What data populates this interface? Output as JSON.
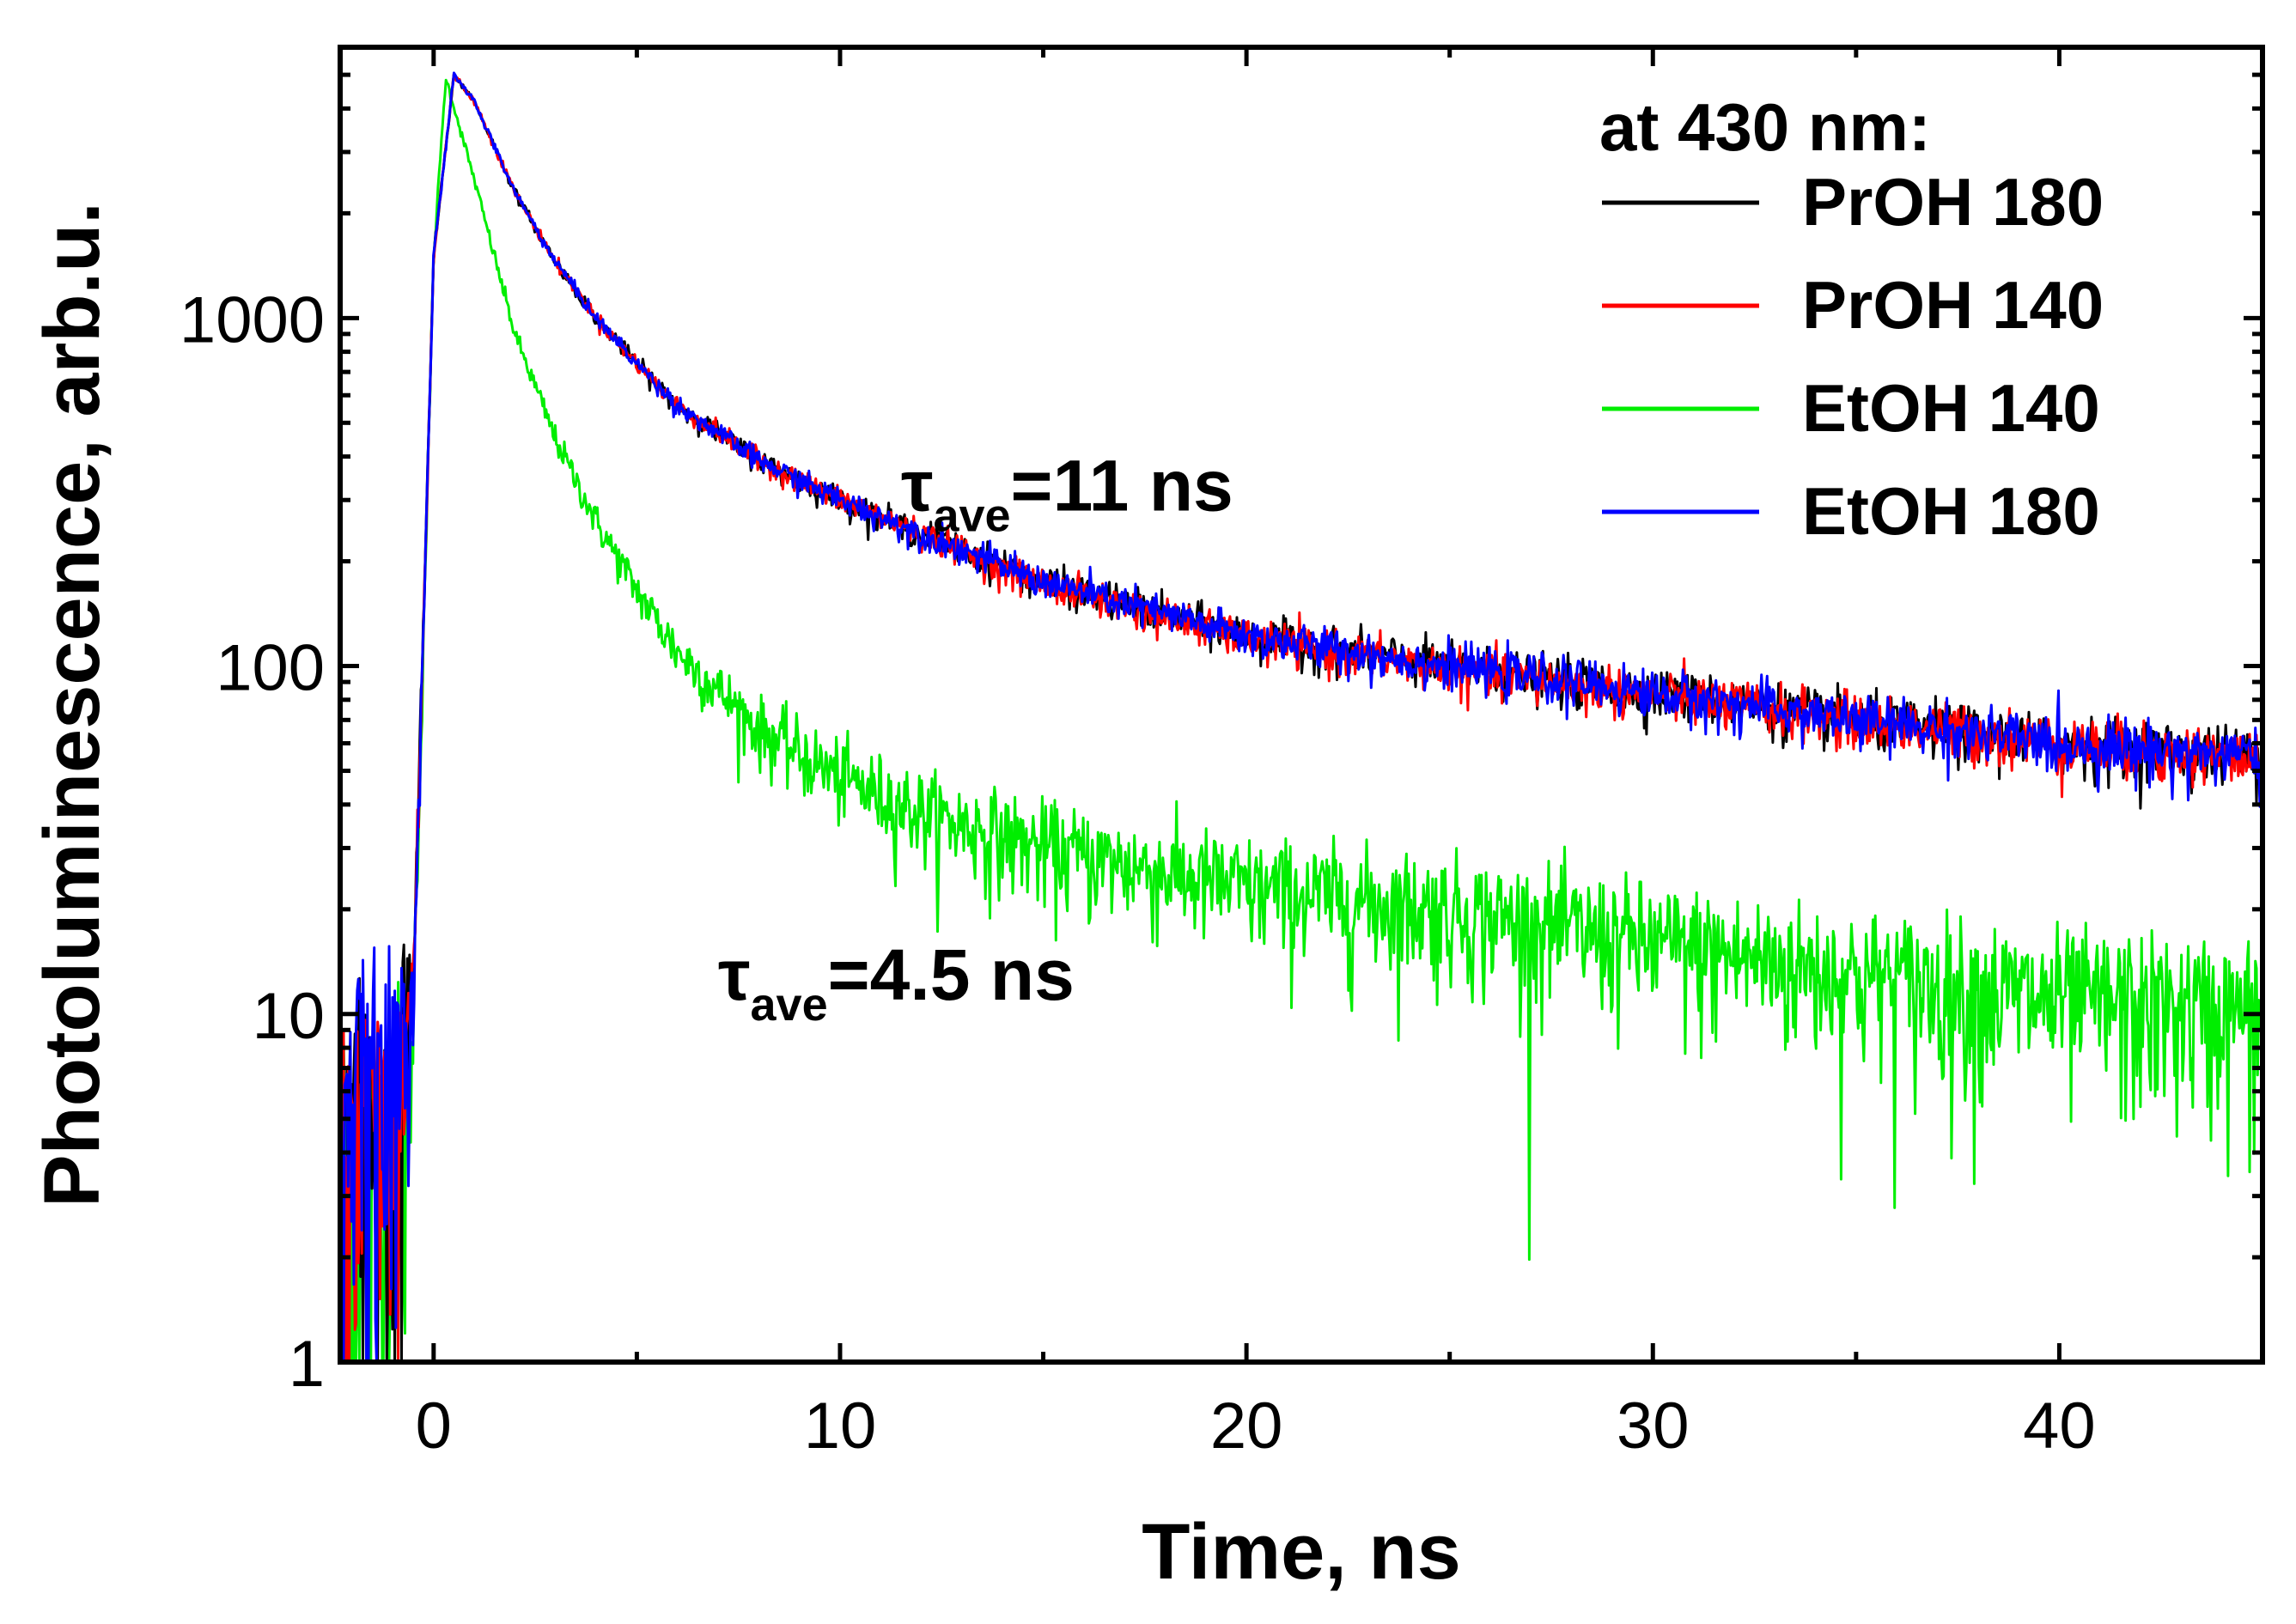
{
  "chart_data": {
    "type": "line",
    "title": "",
    "xlabel": "Time, ns",
    "ylabel": "Photoluminescence, arb.u.",
    "xlim": [
      -2.3,
      45
    ],
    "ylim": [
      1,
      6000
    ],
    "yscale": "log",
    "grid": false,
    "x_ticks": [
      0,
      10,
      20,
      30,
      40
    ],
    "x_tick_labels": [
      "0",
      "10",
      "20",
      "30",
      "40"
    ],
    "y_ticks": [
      1,
      10,
      100,
      1000
    ],
    "y_tick_labels": [
      "1",
      "10",
      "100",
      "1000"
    ],
    "legend": {
      "title": "at 430 nm:",
      "placement": "top-right",
      "entries": [
        {
          "name": "PrOH 180",
          "color": "#000000"
        },
        {
          "name": "PrOH 140",
          "color": "#ff0000"
        },
        {
          "name": "EtOH 140",
          "color": "#00ee00"
        },
        {
          "name": "EtOH 180",
          "color": "#0000ff"
        }
      ]
    },
    "series": [
      {
        "name": "PrOH 180",
        "color": "#000000",
        "x": [
          -2,
          -1,
          -0.5,
          0,
          0.5,
          1,
          2,
          3,
          4,
          5,
          6,
          8,
          10,
          12,
          15,
          20,
          25,
          30,
          35,
          40,
          45
        ],
        "y": [
          5,
          5,
          12,
          1500,
          5000,
          4200,
          2300,
          1450,
          1000,
          740,
          560,
          390,
          300,
          240,
          175,
          122,
          100,
          84,
          70,
          60,
          55
        ]
      },
      {
        "name": "PrOH 140",
        "color": "#ff0000",
        "x": [
          -2,
          -1,
          -0.5,
          0,
          0.5,
          1,
          2,
          3,
          4,
          5,
          6,
          8,
          10,
          12,
          15,
          20,
          25,
          30,
          35,
          40,
          45
        ],
        "y": [
          5,
          5,
          12,
          1500,
          5000,
          4200,
          2300,
          1450,
          1000,
          740,
          560,
          390,
          300,
          240,
          172,
          120,
          98,
          83,
          70,
          60,
          54
        ]
      },
      {
        "name": "EtOH 140",
        "color": "#00ee00",
        "x": [
          -2,
          -1,
          -0.5,
          0,
          0.3,
          1,
          2,
          3,
          4,
          5,
          6,
          8,
          10,
          12,
          15,
          20,
          25,
          30,
          35,
          40,
          45
        ],
        "y": [
          4,
          4,
          10,
          1500,
          4900,
          2500,
          900,
          450,
          260,
          165,
          110,
          66,
          48,
          38,
          30,
          23,
          20,
          16,
          13,
          11,
          10
        ]
      },
      {
        "name": "EtOH 180",
        "color": "#0000ff",
        "x": [
          -2,
          -1,
          -0.5,
          0,
          0.5,
          1,
          2,
          3,
          4,
          5,
          6,
          8,
          10,
          12,
          15,
          20,
          25,
          30,
          35,
          40,
          45
        ],
        "y": [
          6,
          6,
          12,
          1500,
          5000,
          4200,
          2300,
          1450,
          1000,
          740,
          560,
          390,
          300,
          240,
          175,
          122,
          100,
          84,
          70,
          60,
          55
        ]
      }
    ],
    "annotations": [
      {
        "symbol": "τ",
        "subscript": "ave",
        "text": "=11 ns",
        "x": 11.5,
        "y": 280
      },
      {
        "symbol": "τ",
        "subscript": "ave",
        "text": "=4.5 ns",
        "x": 7,
        "y": 11
      }
    ]
  }
}
